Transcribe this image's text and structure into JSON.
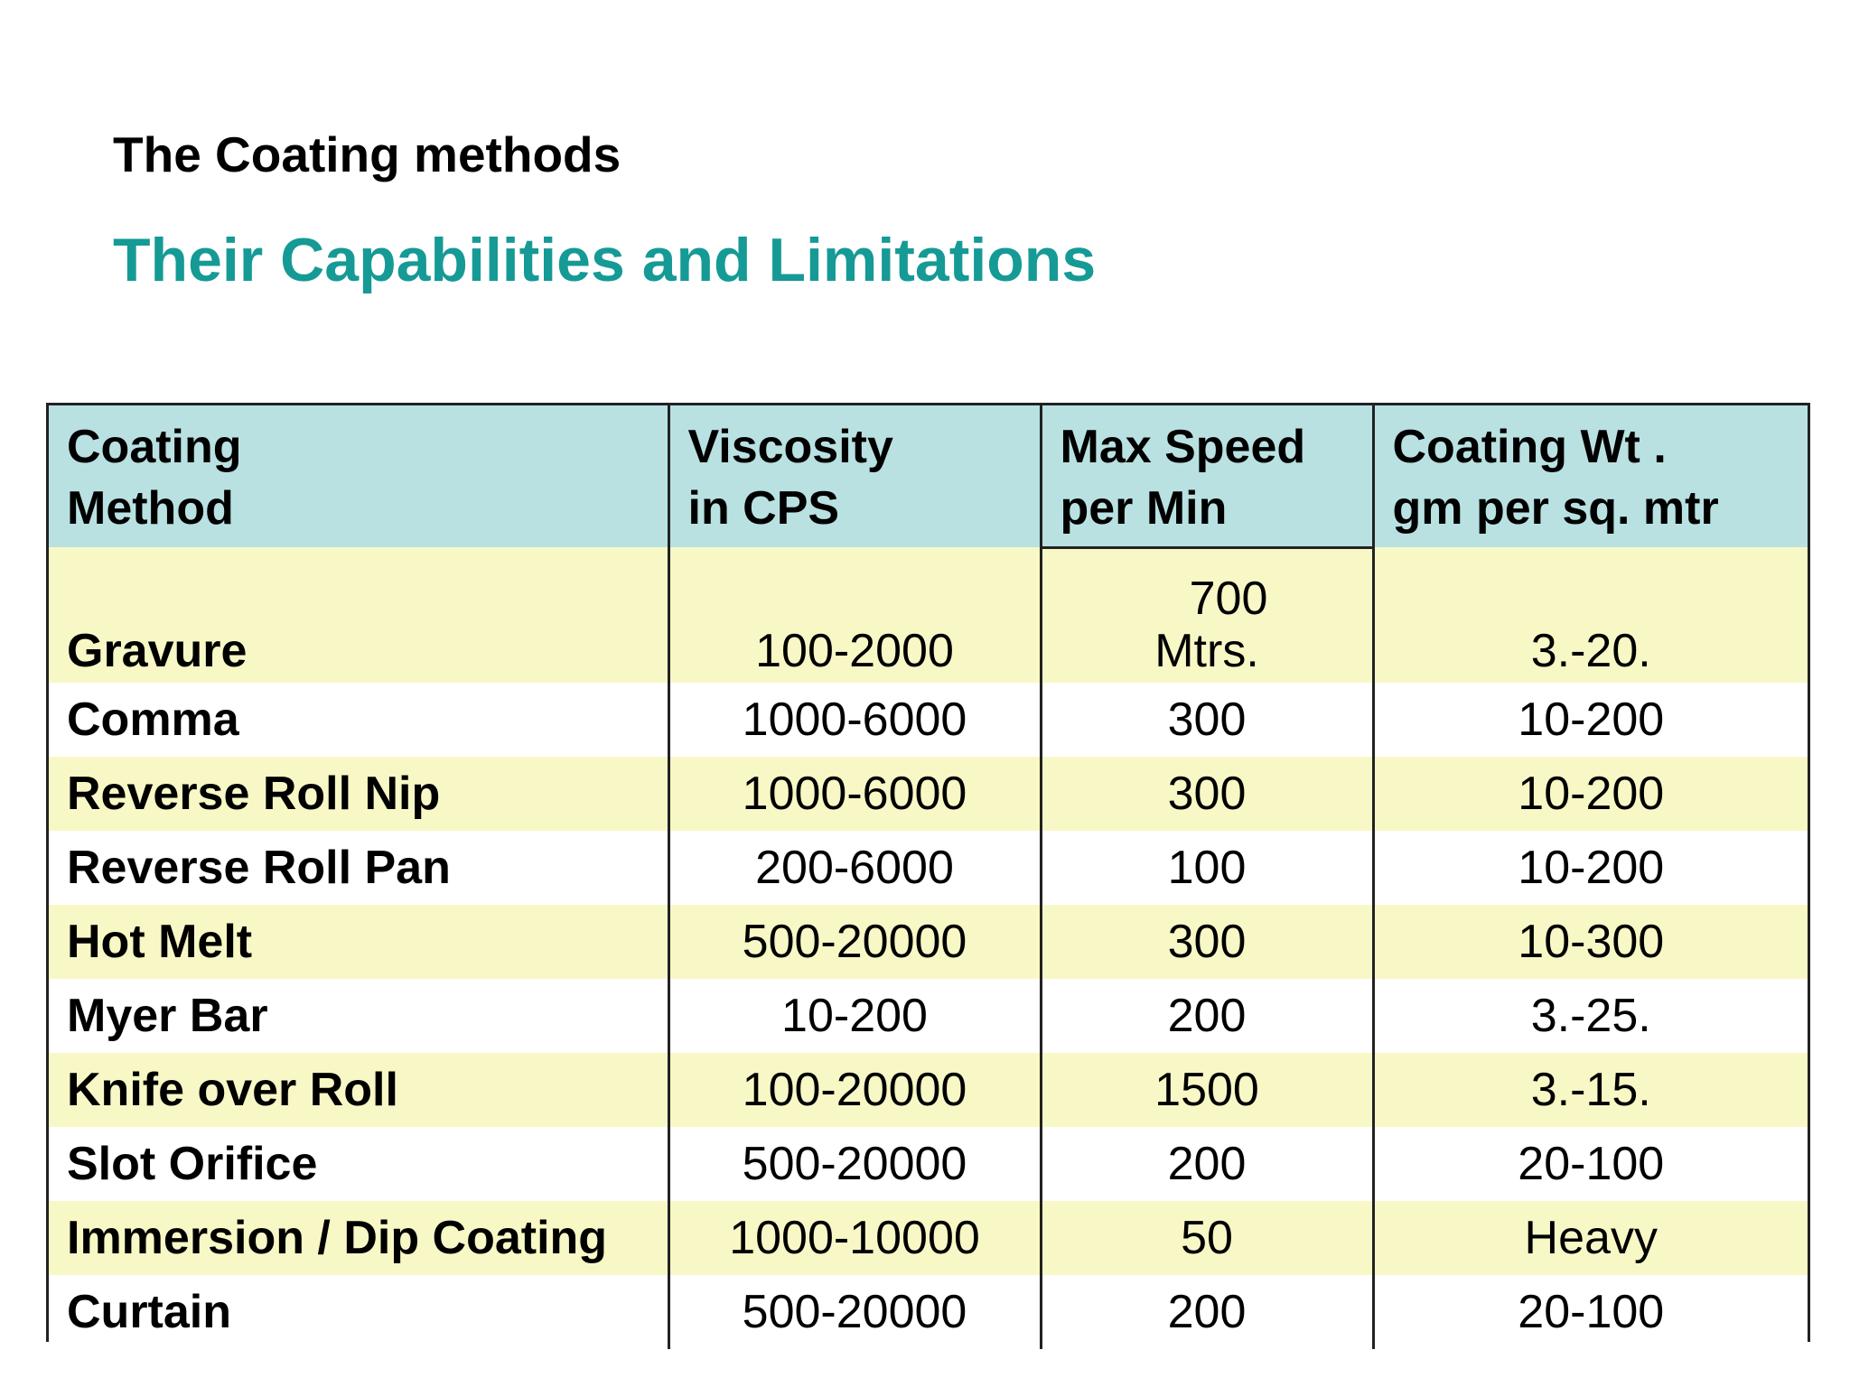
{
  "title": "The Coating methods",
  "subtitle": "Their Capabilities and Limitations",
  "colors": {
    "subtitle": "#159a96",
    "header_bg": "#b9e1e2",
    "shaded_row_bg": "#f8f8c6",
    "plain_row_bg": "#ffffff",
    "border": "#222222"
  },
  "table": {
    "headers": [
      [
        "Coating",
        "Method"
      ],
      [
        "Viscosity",
        "in CPS"
      ],
      [
        "Max Speed",
        "per Min"
      ],
      [
        "Coating Wt .",
        "gm per sq. mtr"
      ]
    ],
    "rows": [
      {
        "method": "Gravure",
        "viscosity": "100-2000",
        "speed_top": "700",
        "speed": "Mtrs.",
        "weight": "3.-20."
      },
      {
        "method": "Comma",
        "viscosity": "1000-6000",
        "speed": "300",
        "weight": "10-200"
      },
      {
        "method": "Reverse Roll Nip",
        "viscosity": "1000-6000",
        "speed": "300",
        "weight": "10-200"
      },
      {
        "method": "Reverse Roll Pan",
        "viscosity": "200-6000",
        "speed": "100",
        "weight": "10-200"
      },
      {
        "method": "Hot Melt",
        "viscosity": "500-20000",
        "speed": "300",
        "weight": "10-300"
      },
      {
        "method": "Myer Bar",
        "viscosity": "10-200",
        "speed": "200",
        "weight": "3.-25."
      },
      {
        "method": "Knife over Roll",
        "viscosity": "100-20000",
        "speed": "1500",
        "weight": "3.-15."
      },
      {
        "method": "Slot Orifice",
        "viscosity": "500-20000",
        "speed": "200",
        "weight": "20-100"
      },
      {
        "method": "Immersion / Dip Coating",
        "viscosity": "1000-10000",
        "speed": "50",
        "weight": "Heavy"
      },
      {
        "method": "Curtain",
        "viscosity": "500-20000",
        "speed": "200",
        "weight": "20-100"
      }
    ]
  }
}
